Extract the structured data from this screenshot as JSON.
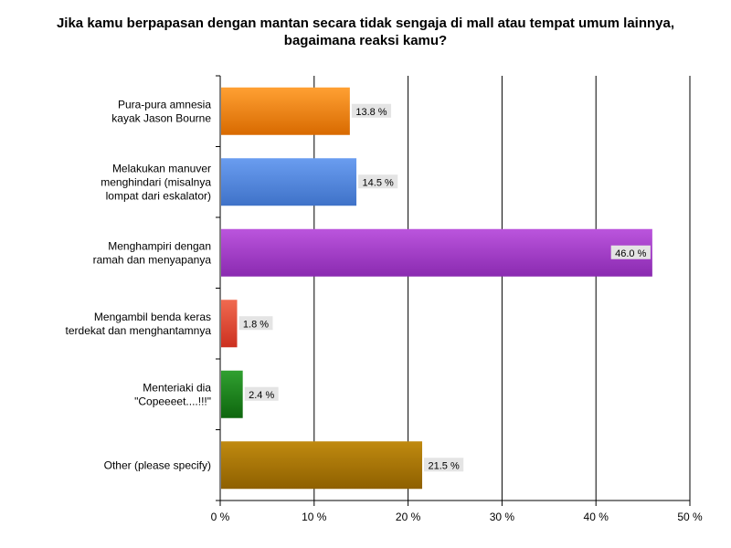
{
  "chart_data": {
    "type": "bar",
    "orientation": "horizontal",
    "title": "Jika kamu berpapasan dengan mantan secara tidak sengaja di mall atau tempat umum lainnya, bagaimana reaksi kamu?",
    "xlabel": "",
    "ylabel": "",
    "xlim": [
      0,
      50
    ],
    "grid": true,
    "categories": [
      [
        "Pura-pura amnesia",
        "kayak Jason Bourne"
      ],
      [
        "Melakukan manuver",
        "menghindari (misalnya",
        "lompat dari eskalator)"
      ],
      [
        "Menghampiri dengan",
        "ramah dan menyapanya"
      ],
      [
        "Mengambil benda keras",
        "terdekat dan menghantamnya"
      ],
      [
        "Menteriaki dia",
        "\"Copeeeet....!!!\""
      ],
      [
        "Other (please specify)"
      ]
    ],
    "values": [
      13.8,
      14.5,
      46.0,
      1.8,
      2.4,
      21.5
    ],
    "data_labels": [
      "13.8 %",
      "14.5 %",
      "46.0 %",
      "1.8 %",
      "2.4 %",
      "21.5 %"
    ],
    "colors": [
      {
        "light": "#ffa033",
        "dark": "#d86a00"
      },
      {
        "light": "#6a9df0",
        "dark": "#3f72c8"
      },
      {
        "light": "#bb55dd",
        "dark": "#8a2ab0"
      },
      {
        "light": "#f06a50",
        "dark": "#cc3020"
      },
      {
        "light": "#30a030",
        "dark": "#0e660e"
      },
      {
        "light": "#c08a10",
        "dark": "#8e6000"
      }
    ],
    "x_ticks": [
      0,
      10,
      20,
      30,
      40,
      50
    ],
    "x_tick_labels": [
      "0 %",
      "10 %",
      "20 %",
      "30 %",
      "40 %",
      "50 %"
    ]
  }
}
